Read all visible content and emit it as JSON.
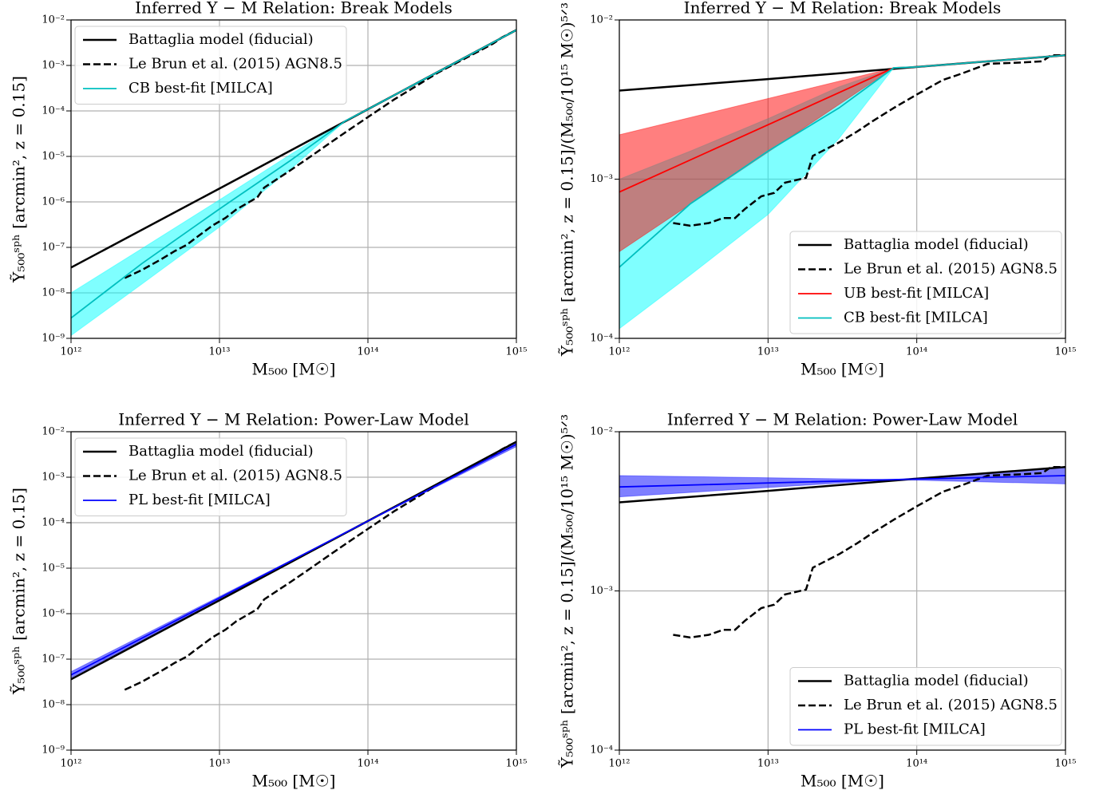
{
  "chart_data": [
    {
      "type": "line",
      "title": "Inferred Y − M Relation: Break Models",
      "xlabel": "M₅₀₀ [M☉]",
      "ylabel": "Ỹ₅₀₀ˢᵖʰ [arcmin², z = 0.15]",
      "xscale": "log",
      "yscale": "log",
      "grid": true,
      "legend": "upper left",
      "xlim": [
        1000000000000.0,
        1000000000000000.0
      ],
      "ylim": [
        1e-09,
        0.01
      ],
      "xticks": [
        {
          "value": 1000000000000.0,
          "label": "10¹²"
        },
        {
          "value": 10000000000000.0,
          "label": "10¹³"
        },
        {
          "value": 100000000000000.0,
          "label": "10¹⁴"
        },
        {
          "value": 1000000000000000.0,
          "label": "10¹⁵"
        }
      ],
      "yticks": [
        {
          "value": 1e-09,
          "label": "10⁻⁹"
        },
        {
          "value": 1e-08,
          "label": "10⁻⁸"
        },
        {
          "value": 1e-07,
          "label": "10⁻⁷"
        },
        {
          "value": 1e-06,
          "label": "10⁻⁶"
        },
        {
          "value": 1e-05,
          "label": "10⁻⁵"
        },
        {
          "value": 0.0001,
          "label": "10⁻⁴"
        },
        {
          "value": 0.001,
          "label": "10⁻³"
        },
        {
          "value": 0.01,
          "label": "10⁻²"
        }
      ],
      "bands": [
        {
          "color": "#00ffff",
          "x": [
            1000000000000.0,
            3000000000000.0,
            10000000000000.0,
            30000000000000.0,
            70000000000000.0
          ],
          "lower": [
            1.15e-09,
            1.56e-08,
            2.8e-07,
            5.2e-06,
            5.95e-05
          ],
          "upper": [
            1e-08,
            9.4e-08,
            1.11e-06,
            1.1e-05,
            5.95e-05
          ]
        }
      ],
      "series": [
        {
          "name": "Battaglia model (fiducial)",
          "color": "#000000",
          "linestyle": "solid",
          "x": [
            1000000000000.0,
            10000000000000.0,
            100000000000000.0,
            1000000000000000.0
          ],
          "values": [
            3.6e-08,
            1.97e-06,
            0.000109,
            0.006
          ]
        },
        {
          "name": "Le Brun et al. (2015) AGN8.5",
          "color": "#000000",
          "linestyle": "dashed",
          "x": [
            2300000000000.0,
            3000000000000.0,
            4000000000000.0,
            5000000000000.0,
            6000000000000.0,
            7000000000000.0,
            9000000000000.0,
            11000000000000.0,
            13000000000000.0,
            18000000000000.0,
            20000000000000.0,
            30000000000000.0,
            40000000000000.0,
            50000000000000.0,
            70000000000000.0,
            100000000000000.0,
            150000000000000.0,
            200000000000000.0,
            300000000000000.0,
            500000000000000.0,
            700000000000000.0,
            800000000000000.0,
            1000000000000000.0
          ],
          "values": [
            2.12e-08,
            3.18e-08,
            5.35e-08,
            8.3e-08,
            1.13e-07,
            1.66e-07,
            3.04e-07,
            4.46e-07,
            6.84e-07,
            1.26e-06,
            2.06e-06,
            4.93e-06,
            9.36e-06,
            1.56e-05,
            3.33e-05,
            7.31e-05,
            0.000178,
            0.000315,
            0.00071,
            0.0017,
            0.00304,
            0.00413,
            0.006
          ]
        },
        {
          "name": "CB best-fit [MILCA]",
          "color": "#00bfbf",
          "linestyle": "solid",
          "x": [
            1000000000000.0,
            3000000000000.0,
            10000000000000.0,
            30000000000000.0,
            70000000000000.0,
            100000000000000.0,
            1000000000000000.0
          ],
          "values": [
            2.8e-09,
            4.4e-08,
            7e-07,
            8.1e-06,
            5.95e-05,
            0.000109,
            0.006
          ]
        }
      ]
    },
    {
      "type": "line",
      "title": "Inferred Y − M Relation: Break Models",
      "xlabel": "M₅₀₀ [M☉]",
      "ylabel": "Ỹ₅₀₀ˢᵖʰ [arcmin², z = 0.15]/(M₅₀₀/10¹⁵ M☉)⁵ᐟ³",
      "xscale": "log",
      "yscale": "log",
      "grid": true,
      "legend": "lower right",
      "xlim": [
        1000000000000.0,
        1000000000000000.0
      ],
      "ylim": [
        0.0001,
        0.01
      ],
      "xticks": [
        {
          "value": 1000000000000.0,
          "label": "10¹²"
        },
        {
          "value": 10000000000000.0,
          "label": "10¹³"
        },
        {
          "value": 100000000000000.0,
          "label": "10¹⁴"
        },
        {
          "value": 1000000000000000.0,
          "label": "10¹⁵"
        }
      ],
      "yticks": [
        {
          "value": 0.0001,
          "label": "10⁻⁴"
        },
        {
          "value": 0.001,
          "label": "10⁻³"
        },
        {
          "value": 0.01,
          "label": "10⁻²"
        }
      ],
      "bands": [
        {
          "color": "#00ffff",
          "x": [
            1000000000000.0,
            3000000000000.0,
            10000000000000.0,
            30000000000000.0,
            70000000000000.0
          ],
          "lower": [
            0.000115,
            0.00025,
            0.0006,
            0.0018,
            0.005
          ],
          "upper": [
            0.001,
            0.0015,
            0.0024,
            0.0038,
            0.005
          ]
        },
        {
          "color": "#ff0000",
          "x": [
            1000000000000.0,
            70000000000000.0
          ],
          "lower": [
            0.00035,
            0.005
          ],
          "upper": [
            0.0019,
            0.005
          ]
        }
      ],
      "series": [
        {
          "name": "Battaglia model (fiducial)",
          "color": "#000000",
          "linestyle": "solid",
          "x": [
            1000000000000.0,
            10000000000000.0,
            100000000000000.0,
            1000000000000000.0
          ],
          "values": [
            0.0036,
            0.00425,
            0.00507,
            0.006
          ]
        },
        {
          "name": "Le Brun et al. (2015) AGN8.5",
          "color": "#000000",
          "linestyle": "dashed",
          "x": [
            2300000000000.0,
            3000000000000.0,
            4000000000000.0,
            5000000000000.0,
            6000000000000.0,
            7000000000000.0,
            9000000000000.0,
            11000000000000.0,
            13000000000000.0,
            18000000000000.0,
            20000000000000.0,
            30000000000000.0,
            40000000000000.0,
            50000000000000.0,
            70000000000000.0,
            100000000000000.0,
            150000000000000.0,
            200000000000000.0,
            300000000000000.0,
            500000000000000.0,
            700000000000000.0,
            800000000000000.0,
            1000000000000000.0
          ],
          "values": [
            0.00053,
            0.00051,
            0.00053,
            0.00057,
            0.00057,
            0.00065,
            0.00078,
            0.00082,
            0.00095,
            0.00102,
            0.0014,
            0.0017,
            0.002,
            0.0023,
            0.0028,
            0.0034,
            0.0042,
            0.0046,
            0.0053,
            0.0054,
            0.0055,
            0.006,
            0.006
          ]
        },
        {
          "name": "UB best-fit [MILCA]",
          "color": "#ff0000",
          "linestyle": "solid",
          "x": [
            1000000000000.0,
            70000000000000.0,
            100000000000000.0,
            1000000000000000.0
          ],
          "values": [
            0.00083,
            0.005,
            0.00507,
            0.006
          ]
        },
        {
          "name": "CB best-fit [MILCA]",
          "color": "#00bfbf",
          "linestyle": "solid",
          "x": [
            1000000000000.0,
            3000000000000.0,
            10000000000000.0,
            30000000000000.0,
            70000000000000.0,
            100000000000000.0,
            1000000000000000.0
          ],
          "values": [
            0.00028,
            0.0007,
            0.0015,
            0.0028,
            0.005,
            0.00507,
            0.006
          ]
        }
      ]
    },
    {
      "type": "line",
      "title": "Inferred Y − M Relation: Power-Law Model",
      "xlabel": "M₅₀₀ [M☉]",
      "ylabel": "Ỹ₅₀₀ˢᵖʰ [arcmin², z = 0.15]",
      "xscale": "log",
      "yscale": "log",
      "grid": true,
      "legend": "upper left",
      "xlim": [
        1000000000000.0,
        1000000000000000.0
      ],
      "ylim": [
        1e-09,
        0.01
      ],
      "xticks": [
        {
          "value": 1000000000000.0,
          "label": "10¹²"
        },
        {
          "value": 10000000000000.0,
          "label": "10¹³"
        },
        {
          "value": 100000000000000.0,
          "label": "10¹⁴"
        },
        {
          "value": 1000000000000000.0,
          "label": "10¹⁵"
        }
      ],
      "yticks": [
        {
          "value": 1e-09,
          "label": "10⁻⁹"
        },
        {
          "value": 1e-08,
          "label": "10⁻⁸"
        },
        {
          "value": 1e-07,
          "label": "10⁻⁷"
        },
        {
          "value": 1e-06,
          "label": "10⁻⁶"
        },
        {
          "value": 1e-05,
          "label": "10⁻⁵"
        },
        {
          "value": 0.0001,
          "label": "10⁻⁴"
        },
        {
          "value": 0.001,
          "label": "10⁻³"
        },
        {
          "value": 0.01,
          "label": "10⁻²"
        }
      ],
      "bands": [
        {
          "color": "#0000ff",
          "x": [
            1000000000000.0,
            70000000000000.0,
            1000000000000000.0
          ],
          "lower": [
            3.9e-08,
            5.95e-05,
            0.0047
          ],
          "upper": [
            5.3e-08,
            5.95e-05,
            0.006
          ]
        }
      ],
      "series": [
        {
          "name": "Battaglia model (fiducial)",
          "color": "#000000",
          "linestyle": "solid",
          "x": [
            1000000000000.0,
            10000000000000.0,
            100000000000000.0,
            1000000000000000.0
          ],
          "values": [
            3.6e-08,
            1.97e-06,
            0.000109,
            0.006
          ]
        },
        {
          "name": "Le Brun et al. (2015) AGN8.5",
          "color": "#000000",
          "linestyle": "dashed",
          "x": [
            2300000000000.0,
            3000000000000.0,
            4000000000000.0,
            5000000000000.0,
            6000000000000.0,
            7000000000000.0,
            9000000000000.0,
            11000000000000.0,
            13000000000000.0,
            18000000000000.0,
            20000000000000.0,
            30000000000000.0,
            40000000000000.0,
            50000000000000.0,
            70000000000000.0,
            100000000000000.0,
            150000000000000.0,
            200000000000000.0,
            300000000000000.0,
            500000000000000.0,
            700000000000000.0,
            800000000000000.0,
            1000000000000000.0
          ],
          "values": [
            2.12e-08,
            3.18e-08,
            5.35e-08,
            8.3e-08,
            1.13e-07,
            1.66e-07,
            3.04e-07,
            4.46e-07,
            6.84e-07,
            1.26e-06,
            2.06e-06,
            4.93e-06,
            9.36e-06,
            1.56e-05,
            3.33e-05,
            7.31e-05,
            0.000178,
            0.000315,
            0.00071,
            0.0017,
            0.00304,
            0.00413,
            0.006
          ]
        },
        {
          "name": "PL best-fit [MILCA]",
          "color": "#0000ff",
          "linestyle": "solid",
          "x": [
            1000000000000.0,
            70000000000000.0,
            1000000000000000.0
          ],
          "values": [
            4.5e-08,
            5.95e-05,
            0.0053
          ]
        }
      ]
    },
    {
      "type": "line",
      "title": "Inferred Y − M Relation: Power-Law Model",
      "xlabel": "M₅₀₀ [M☉]",
      "ylabel": "Ỹ₅₀₀ˢᵖʰ [arcmin², z = 0.15]/(M₅₀₀/10¹⁵ M☉)⁵ᐟ³",
      "xscale": "log",
      "yscale": "log",
      "grid": true,
      "legend": "lower right",
      "xlim": [
        1000000000000.0,
        1000000000000000.0
      ],
      "ylim": [
        0.0001,
        0.01
      ],
      "xticks": [
        {
          "value": 1000000000000.0,
          "label": "10¹²"
        },
        {
          "value": 10000000000000.0,
          "label": "10¹³"
        },
        {
          "value": 100000000000000.0,
          "label": "10¹⁴"
        },
        {
          "value": 1000000000000000.0,
          "label": "10¹⁵"
        }
      ],
      "yticks": [
        {
          "value": 0.0001,
          "label": "10⁻⁴"
        },
        {
          "value": 0.001,
          "label": "10⁻³"
        },
        {
          "value": 0.01,
          "label": "10⁻²"
        }
      ],
      "bands": [
        {
          "color": "#0000ff",
          "x": [
            1000000000000.0,
            70000000000000.0,
            1000000000000000.0
          ],
          "lower": [
            0.0039,
            0.005,
            0.0047
          ],
          "upper": [
            0.0053,
            0.005,
            0.006
          ]
        }
      ],
      "series": [
        {
          "name": "Battaglia model (fiducial)",
          "color": "#000000",
          "linestyle": "solid",
          "x": [
            1000000000000.0,
            10000000000000.0,
            100000000000000.0,
            1000000000000000.0
          ],
          "values": [
            0.0036,
            0.00425,
            0.00507,
            0.006
          ]
        },
        {
          "name": "Le Brun et al. (2015) AGN8.5",
          "color": "#000000",
          "linestyle": "dashed",
          "x": [
            2300000000000.0,
            3000000000000.0,
            4000000000000.0,
            5000000000000.0,
            6000000000000.0,
            7000000000000.0,
            9000000000000.0,
            11000000000000.0,
            13000000000000.0,
            18000000000000.0,
            20000000000000.0,
            30000000000000.0,
            40000000000000.0,
            50000000000000.0,
            70000000000000.0,
            100000000000000.0,
            150000000000000.0,
            200000000000000.0,
            300000000000000.0,
            500000000000000.0,
            700000000000000.0,
            800000000000000.0,
            1000000000000000.0
          ],
          "values": [
            0.00053,
            0.00051,
            0.00053,
            0.00057,
            0.00057,
            0.00065,
            0.00078,
            0.00082,
            0.00095,
            0.00102,
            0.0014,
            0.0017,
            0.002,
            0.0023,
            0.0028,
            0.0034,
            0.0042,
            0.0046,
            0.0053,
            0.0054,
            0.0055,
            0.006,
            0.006
          ]
        },
        {
          "name": "PL best-fit [MILCA]",
          "color": "#0000ff",
          "linestyle": "solid",
          "x": [
            1000000000000.0,
            70000000000000.0,
            1000000000000000.0
          ],
          "values": [
            0.0045,
            0.005,
            0.0053
          ]
        }
      ]
    }
  ]
}
